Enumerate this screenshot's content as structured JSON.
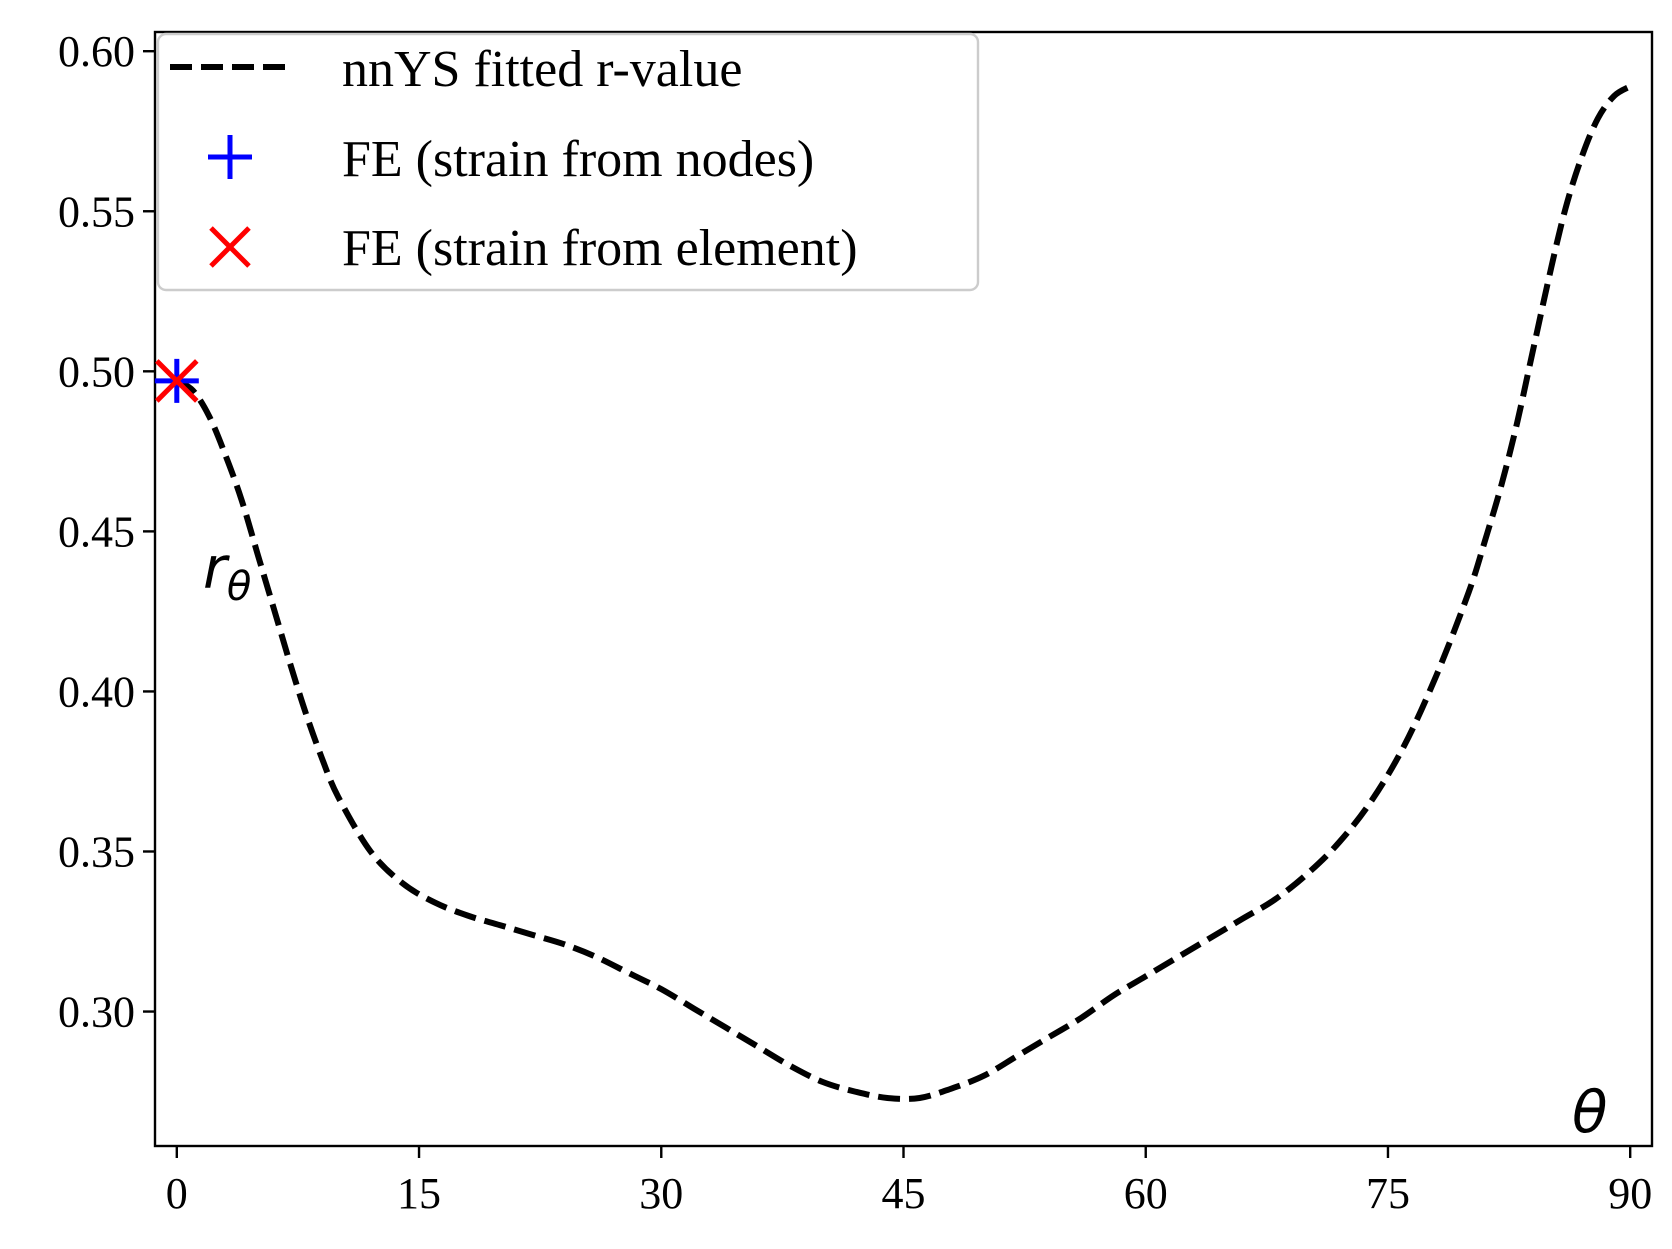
{
  "chart_data": {
    "type": "line",
    "xlim": [
      -1.35,
      91.35
    ],
    "ylim": [
      0.258,
      0.606
    ],
    "x_ticks": [
      {
        "value": 0,
        "label": "0"
      },
      {
        "value": 15,
        "label": "15"
      },
      {
        "value": 30,
        "label": "30"
      },
      {
        "value": 45,
        "label": "45"
      },
      {
        "value": 60,
        "label": "60"
      },
      {
        "value": 75,
        "label": "75"
      },
      {
        "value": 90,
        "label": "90"
      }
    ],
    "y_ticks": [
      {
        "value": 0.3,
        "label": "0.30"
      },
      {
        "value": 0.35,
        "label": "0.35"
      },
      {
        "value": 0.4,
        "label": "0.40"
      },
      {
        "value": 0.45,
        "label": "0.45"
      },
      {
        "value": 0.5,
        "label": "0.50"
      },
      {
        "value": 0.55,
        "label": "0.55"
      },
      {
        "value": 0.6,
        "label": "0.60"
      }
    ],
    "xlabel": "θ",
    "ylabel": "r",
    "ylabel_subscript": "θ",
    "grid": false,
    "legend_position": "top-left",
    "series": [
      {
        "name": "nnYS fitted r-value",
        "style": "dashed-line",
        "color": "#000000",
        "x": [
          0,
          1,
          2,
          3,
          4,
          5,
          6,
          7,
          8,
          9,
          10,
          12,
          14,
          16,
          18,
          20,
          22,
          24,
          26,
          28,
          30,
          32,
          34,
          36,
          38,
          40,
          42,
          44,
          46,
          48,
          50,
          52,
          54,
          56,
          58,
          60,
          62,
          64,
          66,
          68,
          70,
          72,
          74,
          76,
          78,
          80,
          81,
          82,
          83,
          84,
          85,
          86,
          87,
          88,
          89,
          90
        ],
        "y": [
          0.497,
          0.494,
          0.486,
          0.474,
          0.46,
          0.443,
          0.426,
          0.409,
          0.393,
          0.379,
          0.367,
          0.35,
          0.34,
          0.334,
          0.33,
          0.327,
          0.324,
          0.321,
          0.317,
          0.312,
          0.307,
          0.301,
          0.295,
          0.289,
          0.283,
          0.278,
          0.275,
          0.273,
          0.273,
          0.276,
          0.28,
          0.286,
          0.292,
          0.298,
          0.305,
          0.311,
          0.317,
          0.323,
          0.329,
          0.335,
          0.343,
          0.353,
          0.366,
          0.383,
          0.405,
          0.431,
          0.447,
          0.464,
          0.484,
          0.507,
          0.53,
          0.551,
          0.567,
          0.579,
          0.586,
          0.589
        ]
      },
      {
        "name": "FE (strain from nodes)",
        "style": "plus-marker",
        "color": "#0000ff",
        "x": [
          0
        ],
        "y": [
          0.497
        ]
      },
      {
        "name": "FE (strain from element)",
        "style": "x-marker",
        "color": "#ff0000",
        "x": [
          0
        ],
        "y": [
          0.497
        ]
      }
    ]
  }
}
